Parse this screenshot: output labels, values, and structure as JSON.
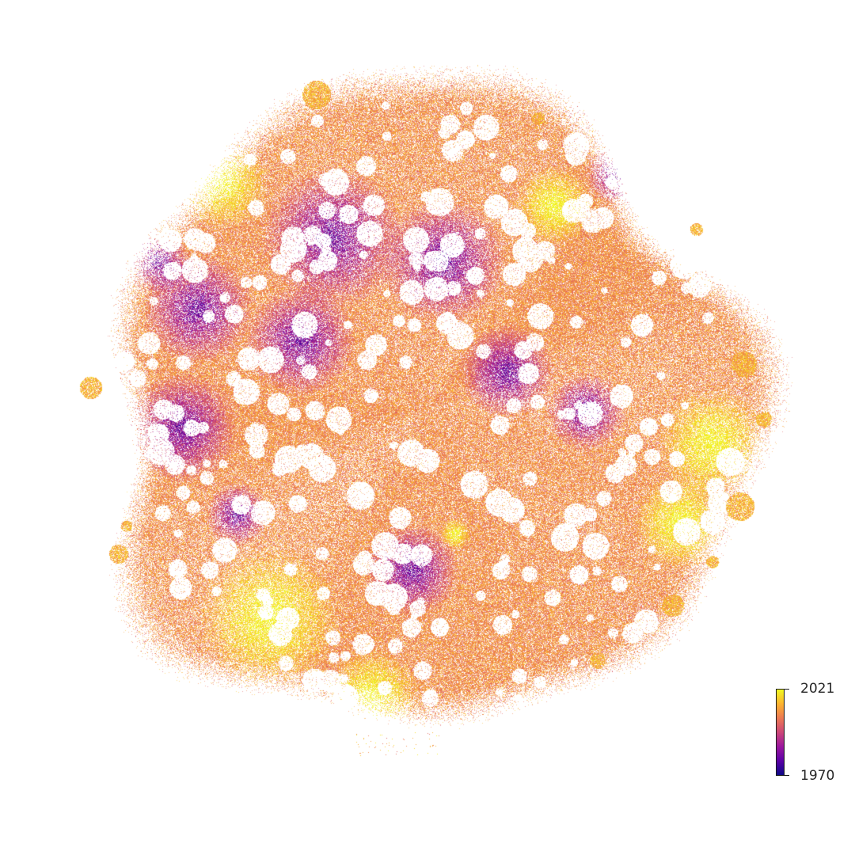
{
  "chart_data": {
    "type": "scatter",
    "title": "",
    "xlabel": "",
    "ylabel": "",
    "axes_visible": false,
    "grid": false,
    "color_encoding": "year",
    "colormap": "plasma",
    "colorbar": {
      "min_label": "1970",
      "max_label": "2021",
      "min": 1970,
      "max": 2021,
      "placement": "bottom-right",
      "stops": [
        "#0d0887",
        "#5c01a6",
        "#9c179e",
        "#cc4778",
        "#ed7953",
        "#fdb42f",
        "#f0f921"
      ]
    },
    "dominant_colors": {
      "older_regions": "#6a0dad",
      "mid_regions": "#d8576b",
      "recent_regions": "#f5b42a",
      "newest_regions": "#f0d622"
    }
  }
}
